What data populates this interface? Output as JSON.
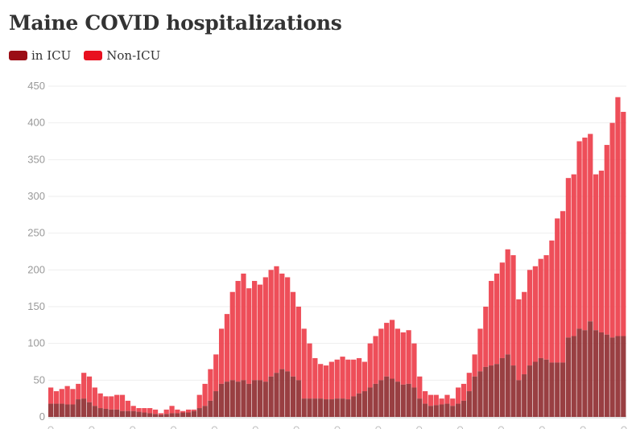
{
  "chart_data": {
    "type": "bar",
    "stacked": true,
    "title": "Maine COVID hospitalizations",
    "xlabel": "",
    "ylabel": "",
    "ylim": [
      0,
      450
    ],
    "yticks": [
      0,
      50,
      100,
      150,
      200,
      250,
      300,
      350,
      400,
      450
    ],
    "grid": true,
    "legend_placement": "top-left",
    "series": [
      {
        "name": "in ICU",
        "color": "#9b0d15",
        "values": [
          18,
          18,
          18,
          17,
          17,
          24,
          25,
          20,
          15,
          12,
          11,
          10,
          10,
          8,
          8,
          8,
          7,
          6,
          5,
          4,
          3,
          4,
          5,
          5,
          6,
          6,
          8,
          12,
          15,
          22,
          35,
          45,
          48,
          50,
          48,
          50,
          45,
          50,
          50,
          48,
          55,
          60,
          65,
          62,
          55,
          50,
          25,
          25,
          25,
          25,
          24,
          24,
          25,
          25,
          24,
          28,
          32,
          35,
          40,
          45,
          50,
          55,
          52,
          48,
          44,
          45,
          40,
          25,
          18,
          15,
          16,
          17,
          18,
          15,
          18,
          22,
          35,
          55,
          62,
          68,
          70,
          72,
          80,
          85,
          70,
          50,
          58,
          70,
          75,
          80,
          78,
          74,
          74,
          74,
          108,
          110,
          120,
          118,
          130,
          118,
          115,
          112,
          108,
          110,
          110
        ]
      },
      {
        "name": "Non-ICU",
        "color": "#e8101f",
        "values": [
          22,
          17,
          20,
          25,
          21,
          21,
          35,
          35,
          25,
          20,
          17,
          18,
          20,
          22,
          14,
          7,
          5,
          6,
          7,
          6,
          2,
          6,
          10,
          5,
          2,
          4,
          2,
          18,
          30,
          43,
          50,
          75,
          92,
          120,
          137,
          145,
          130,
          135,
          130,
          142,
          145,
          145,
          130,
          128,
          115,
          100,
          95,
          75,
          55,
          47,
          46,
          51,
          53,
          57,
          54,
          50,
          48,
          40,
          60,
          65,
          70,
          73,
          80,
          72,
          71,
          73,
          60,
          30,
          17,
          15,
          14,
          8,
          12,
          10,
          22,
          23,
          25,
          30,
          58,
          82,
          115,
          123,
          130,
          143,
          150,
          110,
          112,
          130,
          130,
          135,
          142,
          166,
          196,
          206,
          217,
          220,
          255,
          262,
          255,
          212,
          220,
          258,
          292,
          325,
          305
        ]
      }
    ]
  }
}
